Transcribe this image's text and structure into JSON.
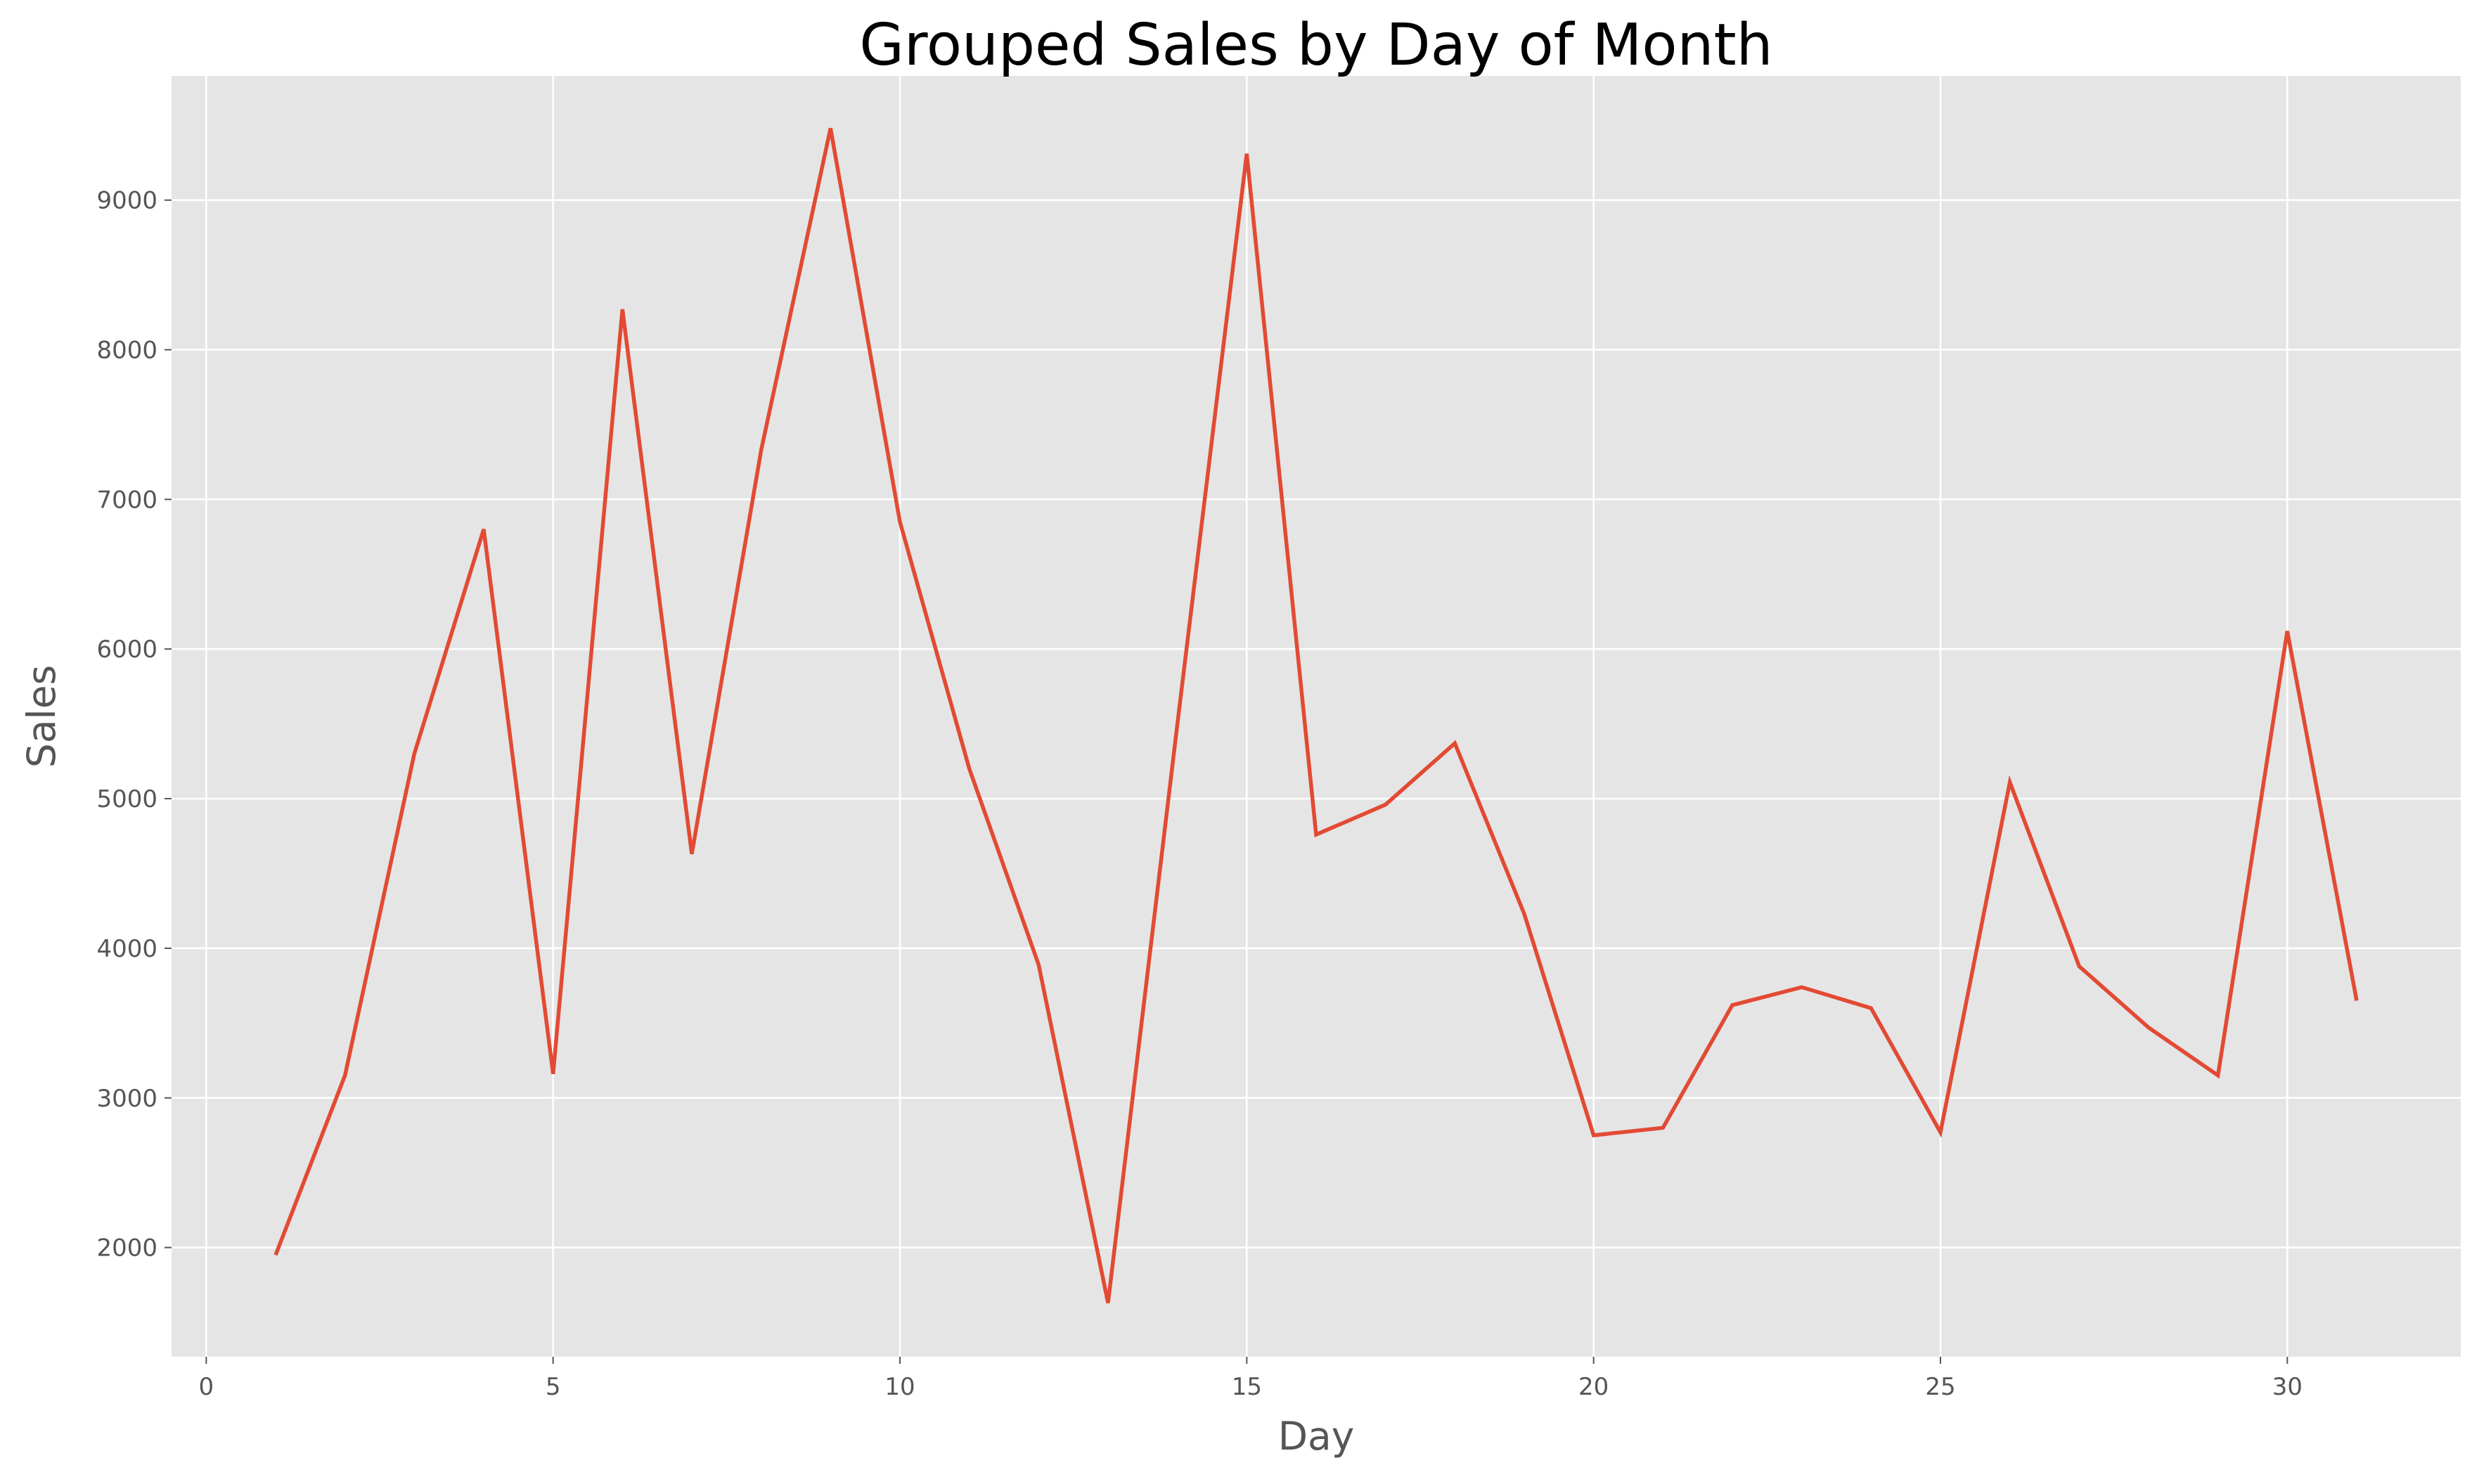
{
  "chart_data": {
    "type": "line",
    "title": "Grouped Sales by Day of Month",
    "xlabel": "Day",
    "ylabel": "Sales",
    "xlim": [
      -0.5,
      32.5
    ],
    "ylim": [
      1270,
      9830
    ],
    "xticks": [
      0,
      5,
      10,
      15,
      20,
      25,
      30
    ],
    "xtick_labels": [
      "0",
      "5",
      "10",
      "15",
      "20",
      "25",
      "30"
    ],
    "yticks": [
      2000,
      3000,
      4000,
      5000,
      6000,
      7000,
      8000,
      9000
    ],
    "ytick_labels": [
      "2000",
      "3000",
      "4000",
      "5000",
      "6000",
      "7000",
      "8000",
      "9000"
    ],
    "grid": true,
    "series": [
      {
        "color": "#E24A33",
        "x": [
          1,
          2,
          3,
          4,
          5,
          6,
          7,
          8,
          9,
          10,
          11,
          12,
          13,
          14,
          15,
          16,
          17,
          18,
          19,
          20,
          21,
          22,
          23,
          24,
          25,
          26,
          27,
          28,
          29,
          30,
          31
        ],
        "values": [
          1950,
          3150,
          5300,
          6800,
          3160,
          8270,
          4630,
          7330,
          9480,
          6850,
          5200,
          3890,
          1630,
          5500,
          9310,
          4760,
          4960,
          5370,
          4230,
          2750,
          2800,
          3620,
          3740,
          3600,
          2770,
          5110,
          3880,
          3470,
          3150,
          6120,
          3650
        ]
      }
    ]
  },
  "colors": {
    "plot_background": "#E5E5E5",
    "grid": "#FFFFFF",
    "line": "#E24A33"
  }
}
